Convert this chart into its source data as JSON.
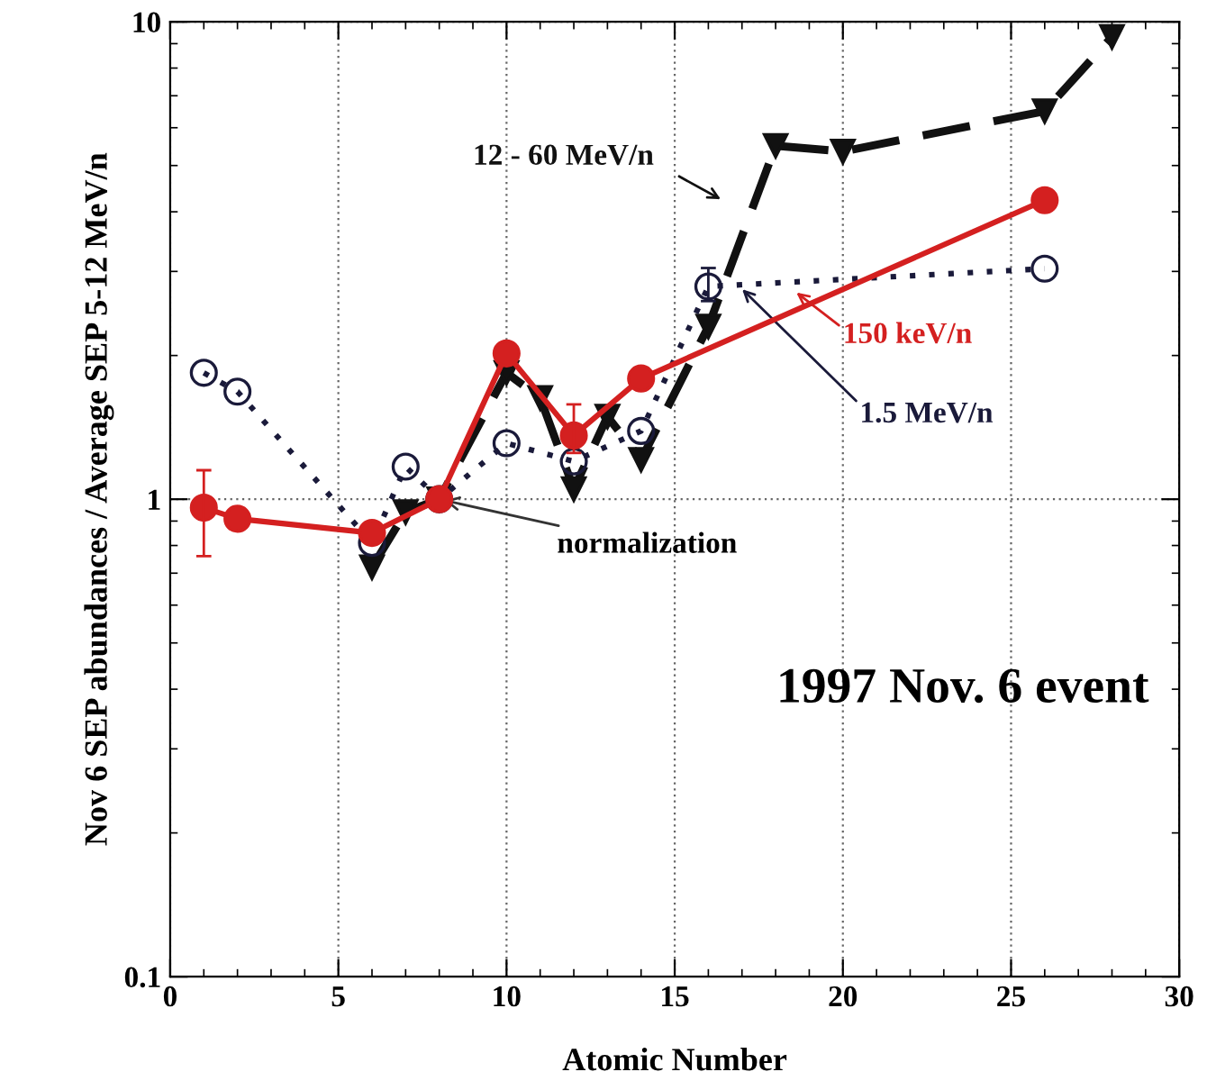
{
  "chart_data": {
    "type": "line",
    "xlabel": "Atomic Number",
    "ylabel": "Nov 6 SEP abundances / Average SEP 5-12 MeV/n",
    "xlim": [
      0,
      30
    ],
    "xticks": [
      0,
      5,
      10,
      15,
      20,
      25,
      30
    ],
    "ylim": [
      0.1,
      10
    ],
    "yticks": [
      0.1,
      1,
      10
    ],
    "log": "y",
    "grid": true,
    "series": [
      {
        "name": "12 - 60 MeV/n",
        "color": "#111111",
        "marker": "triangle",
        "line_style": "dashed",
        "x": [
          6,
          7,
          8,
          10,
          11,
          12,
          13,
          14,
          16,
          18,
          20,
          26,
          28
        ],
        "values": [
          0.72,
          0.94,
          1.0,
          1.84,
          1.63,
          1.05,
          1.49,
          1.21,
          2.3,
          5.5,
          5.35,
          6.5,
          9.3
        ]
      },
      {
        "name": "1.5 MeV/n",
        "color": "#1a1a3a",
        "marker": "circle",
        "line_style": "dotted",
        "x": [
          1,
          2,
          6,
          7,
          8,
          10,
          12,
          14,
          16,
          26
        ],
        "values": [
          1.84,
          1.68,
          0.81,
          1.17,
          1.0,
          1.31,
          1.2,
          1.39,
          2.79,
          3.04
        ],
        "errors": [
          null,
          null,
          null,
          null,
          null,
          null,
          null,
          null,
          [
            2.6,
            3.05
          ],
          null
        ]
      },
      {
        "name": "150 keV/n",
        "color": "#d42020",
        "marker": "circle",
        "line_style": "solid",
        "x": [
          1,
          2,
          6,
          8,
          10,
          12,
          14,
          26
        ],
        "values": [
          0.96,
          0.91,
          0.85,
          1.0,
          2.02,
          1.36,
          1.79,
          4.23
        ],
        "errors": [
          [
            0.76,
            1.15
          ],
          null,
          null,
          null,
          null,
          [
            1.25,
            1.58
          ],
          null,
          null
        ]
      }
    ],
    "annotations": [
      {
        "text": "normalization",
        "x": 8,
        "y": 1.0
      },
      "1997 Nov. 6 event"
    ]
  }
}
